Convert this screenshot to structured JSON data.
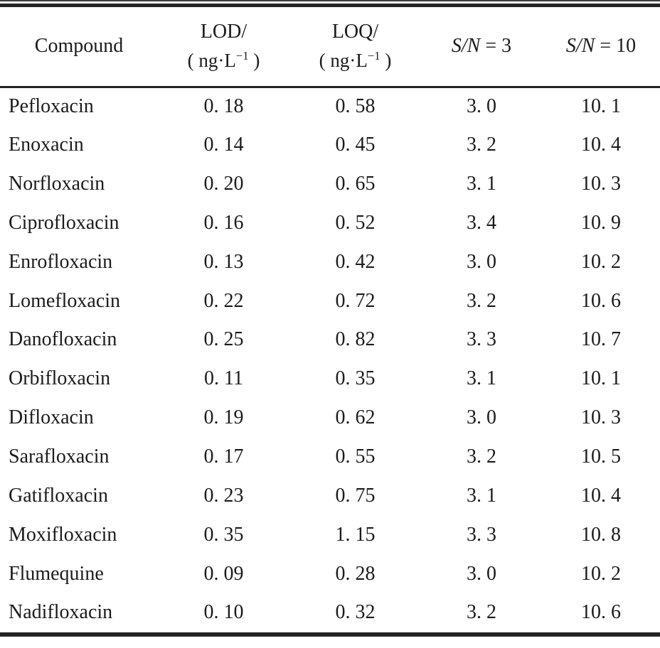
{
  "table": {
    "header": {
      "compound": "Compound",
      "lod_label": "LOD/",
      "loq_label": "LOQ/",
      "unit_prefix": "( ng·L",
      "unit_sup": "−1",
      "unit_suffix": " )",
      "sn_label": "S/N",
      "sn3_suffix": " = 3",
      "sn10_suffix": " = 10"
    },
    "rows": [
      {
        "compound": "Pefloxacin",
        "lod": "0. 18",
        "loq": "0. 58",
        "sn3": "3. 0",
        "sn10": "10. 1"
      },
      {
        "compound": "Enoxacin",
        "lod": "0. 14",
        "loq": "0. 45",
        "sn3": "3. 2",
        "sn10": "10. 4"
      },
      {
        "compound": "Norfloxacin",
        "lod": "0. 20",
        "loq": "0. 65",
        "sn3": "3. 1",
        "sn10": "10. 3"
      },
      {
        "compound": "Ciprofloxacin",
        "lod": "0. 16",
        "loq": "0. 52",
        "sn3": "3. 4",
        "sn10": "10. 9"
      },
      {
        "compound": "Enrofloxacin",
        "lod": "0. 13",
        "loq": "0. 42",
        "sn3": "3. 0",
        "sn10": "10. 2"
      },
      {
        "compound": "Lomefloxacin",
        "lod": "0. 22",
        "loq": "0. 72",
        "sn3": "3. 2",
        "sn10": "10. 6"
      },
      {
        "compound": "Danofloxacin",
        "lod": "0. 25",
        "loq": "0. 82",
        "sn3": "3. 3",
        "sn10": "10. 7"
      },
      {
        "compound": "Orbifloxacin",
        "lod": "0. 11",
        "loq": "0. 35",
        "sn3": "3. 1",
        "sn10": "10. 1"
      },
      {
        "compound": "Difloxacin",
        "lod": "0. 19",
        "loq": "0. 62",
        "sn3": "3. 0",
        "sn10": "10. 3"
      },
      {
        "compound": "Sarafloxacin",
        "lod": "0. 17",
        "loq": "0. 55",
        "sn3": "3. 2",
        "sn10": "10. 5"
      },
      {
        "compound": "Gatifloxacin",
        "lod": "0. 23",
        "loq": "0. 75",
        "sn3": "3. 1",
        "sn10": "10. 4"
      },
      {
        "compound": "Moxifloxacin",
        "lod": "0. 35",
        "loq": "1. 15",
        "sn3": "3. 3",
        "sn10": "10. 8"
      },
      {
        "compound": "Flumequine",
        "lod": "0. 09",
        "loq": "0. 28",
        "sn3": "3. 0",
        "sn10": "10. 2"
      },
      {
        "compound": "Nadifloxacin",
        "lod": "0. 10",
        "loq": "0. 32",
        "sn3": "3. 2",
        "sn10": "10. 6"
      }
    ]
  }
}
